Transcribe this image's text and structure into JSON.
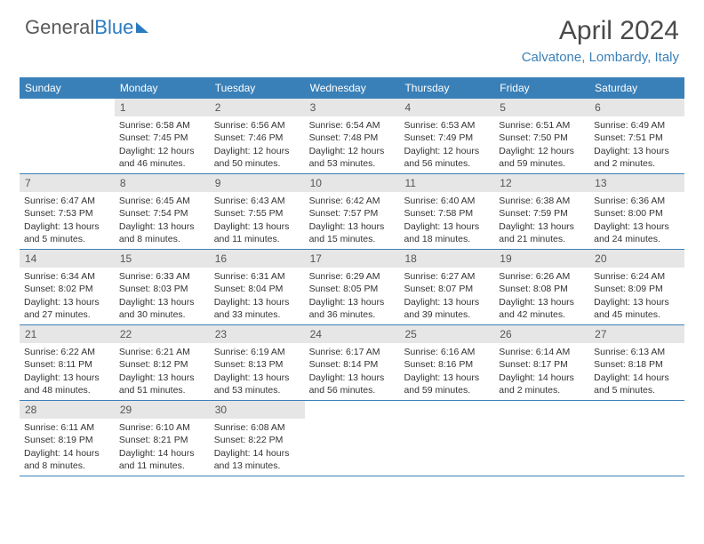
{
  "logo": {
    "text_gray": "General",
    "text_blue": "Blue"
  },
  "title": "April 2024",
  "location": "Calvatone, Lombardy, Italy",
  "day_headers": [
    "Sunday",
    "Monday",
    "Tuesday",
    "Wednesday",
    "Thursday",
    "Friday",
    "Saturday"
  ],
  "colors": {
    "header_bg": "#3a80b8",
    "daynum_bg": "#e6e6e6",
    "location_color": "#3a80b8",
    "title_color": "#4a4a4a"
  },
  "weeks": [
    [
      null,
      {
        "n": "1",
        "sr": "6:58 AM",
        "ss": "7:45 PM",
        "dl": "12 hours and 46 minutes."
      },
      {
        "n": "2",
        "sr": "6:56 AM",
        "ss": "7:46 PM",
        "dl": "12 hours and 50 minutes."
      },
      {
        "n": "3",
        "sr": "6:54 AM",
        "ss": "7:48 PM",
        "dl": "12 hours and 53 minutes."
      },
      {
        "n": "4",
        "sr": "6:53 AM",
        "ss": "7:49 PM",
        "dl": "12 hours and 56 minutes."
      },
      {
        "n": "5",
        "sr": "6:51 AM",
        "ss": "7:50 PM",
        "dl": "12 hours and 59 minutes."
      },
      {
        "n": "6",
        "sr": "6:49 AM",
        "ss": "7:51 PM",
        "dl": "13 hours and 2 minutes."
      }
    ],
    [
      {
        "n": "7",
        "sr": "6:47 AM",
        "ss": "7:53 PM",
        "dl": "13 hours and 5 minutes."
      },
      {
        "n": "8",
        "sr": "6:45 AM",
        "ss": "7:54 PM",
        "dl": "13 hours and 8 minutes."
      },
      {
        "n": "9",
        "sr": "6:43 AM",
        "ss": "7:55 PM",
        "dl": "13 hours and 11 minutes."
      },
      {
        "n": "10",
        "sr": "6:42 AM",
        "ss": "7:57 PM",
        "dl": "13 hours and 15 minutes."
      },
      {
        "n": "11",
        "sr": "6:40 AM",
        "ss": "7:58 PM",
        "dl": "13 hours and 18 minutes."
      },
      {
        "n": "12",
        "sr": "6:38 AM",
        "ss": "7:59 PM",
        "dl": "13 hours and 21 minutes."
      },
      {
        "n": "13",
        "sr": "6:36 AM",
        "ss": "8:00 PM",
        "dl": "13 hours and 24 minutes."
      }
    ],
    [
      {
        "n": "14",
        "sr": "6:34 AM",
        "ss": "8:02 PM",
        "dl": "13 hours and 27 minutes."
      },
      {
        "n": "15",
        "sr": "6:33 AM",
        "ss": "8:03 PM",
        "dl": "13 hours and 30 minutes."
      },
      {
        "n": "16",
        "sr": "6:31 AM",
        "ss": "8:04 PM",
        "dl": "13 hours and 33 minutes."
      },
      {
        "n": "17",
        "sr": "6:29 AM",
        "ss": "8:05 PM",
        "dl": "13 hours and 36 minutes."
      },
      {
        "n": "18",
        "sr": "6:27 AM",
        "ss": "8:07 PM",
        "dl": "13 hours and 39 minutes."
      },
      {
        "n": "19",
        "sr": "6:26 AM",
        "ss": "8:08 PM",
        "dl": "13 hours and 42 minutes."
      },
      {
        "n": "20",
        "sr": "6:24 AM",
        "ss": "8:09 PM",
        "dl": "13 hours and 45 minutes."
      }
    ],
    [
      {
        "n": "21",
        "sr": "6:22 AM",
        "ss": "8:11 PM",
        "dl": "13 hours and 48 minutes."
      },
      {
        "n": "22",
        "sr": "6:21 AM",
        "ss": "8:12 PM",
        "dl": "13 hours and 51 minutes."
      },
      {
        "n": "23",
        "sr": "6:19 AM",
        "ss": "8:13 PM",
        "dl": "13 hours and 53 minutes."
      },
      {
        "n": "24",
        "sr": "6:17 AM",
        "ss": "8:14 PM",
        "dl": "13 hours and 56 minutes."
      },
      {
        "n": "25",
        "sr": "6:16 AM",
        "ss": "8:16 PM",
        "dl": "13 hours and 59 minutes."
      },
      {
        "n": "26",
        "sr": "6:14 AM",
        "ss": "8:17 PM",
        "dl": "14 hours and 2 minutes."
      },
      {
        "n": "27",
        "sr": "6:13 AM",
        "ss": "8:18 PM",
        "dl": "14 hours and 5 minutes."
      }
    ],
    [
      {
        "n": "28",
        "sr": "6:11 AM",
        "ss": "8:19 PM",
        "dl": "14 hours and 8 minutes."
      },
      {
        "n": "29",
        "sr": "6:10 AM",
        "ss": "8:21 PM",
        "dl": "14 hours and 11 minutes."
      },
      {
        "n": "30",
        "sr": "6:08 AM",
        "ss": "8:22 PM",
        "dl": "14 hours and 13 minutes."
      },
      null,
      null,
      null,
      null
    ]
  ],
  "labels": {
    "sunrise": "Sunrise:",
    "sunset": "Sunset:",
    "daylight": "Daylight:"
  }
}
